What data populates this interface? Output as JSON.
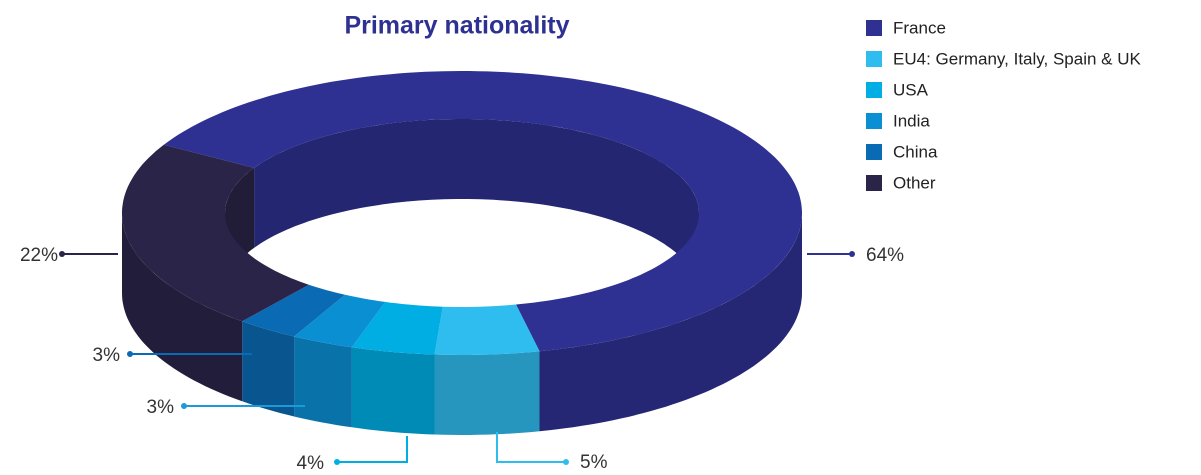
{
  "chart_data": {
    "type": "pie",
    "title": "Primary nationality",
    "categories": [
      "France",
      "EU4: Germany, Italy, Spain & UK",
      "USA",
      "India",
      "China",
      "Other"
    ],
    "values": [
      64,
      5,
      4,
      3,
      3,
      22
    ],
    "value_labels": [
      "64%",
      "5%",
      "4%",
      "3%",
      "3%",
      "22%"
    ],
    "colors": [
      "#2e3192",
      "#2fbcee",
      "#00aee3",
      "#0a8fd3",
      "#0a6ab3",
      "#2a2448"
    ],
    "legend": "upper right"
  }
}
